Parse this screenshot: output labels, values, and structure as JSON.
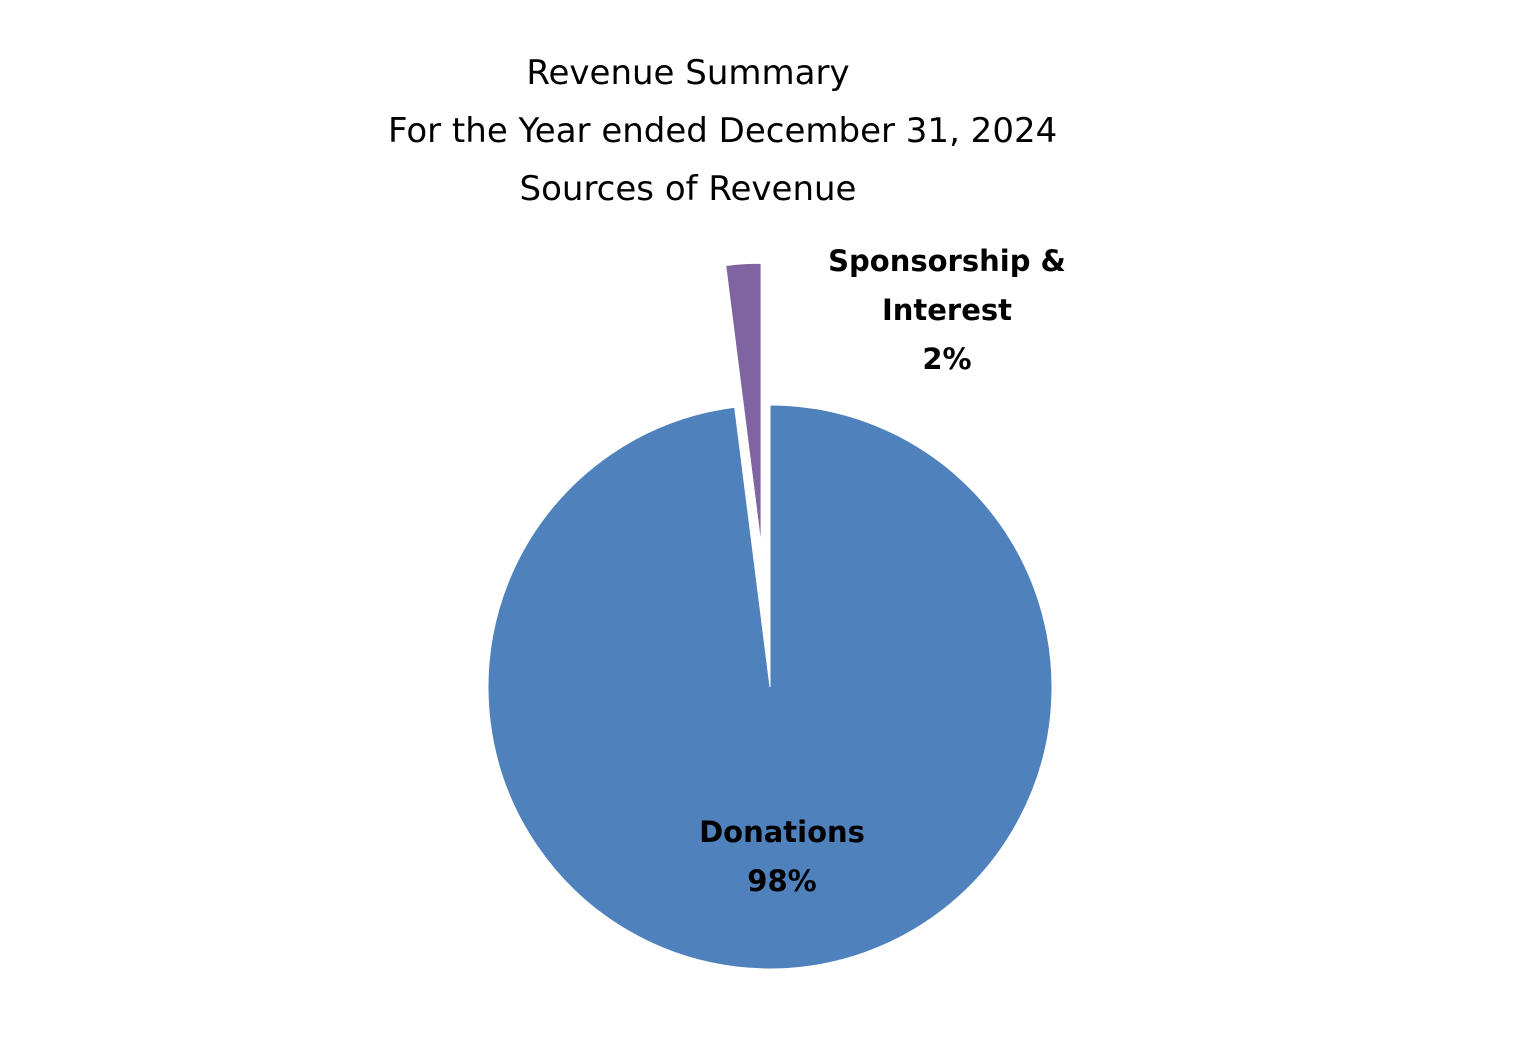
{
  "chart_data": {
    "type": "pie",
    "title": [
      "Revenue Summary",
      "For the Year ended December 31, 2024",
      "Sources of Revenue"
    ],
    "slices": [
      {
        "label_lines": [
          "Donations"
        ],
        "percent_label": "98%",
        "value": 98,
        "color": "#4F81BD",
        "exploded": false
      },
      {
        "label_lines": [
          "Sponsorship &",
          "Interest"
        ],
        "percent_label": "2%",
        "value": 2,
        "color": "#8064A2",
        "exploded": true
      }
    ],
    "start_angle_deg": 0,
    "direction": "clockwise",
    "legend": "none"
  }
}
